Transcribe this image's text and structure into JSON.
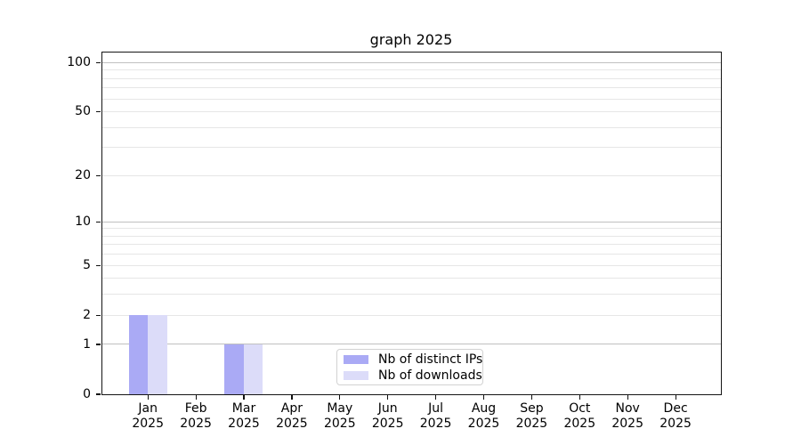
{
  "chart_data": {
    "type": "bar",
    "title": "graph 2025",
    "categories": [
      {
        "month": "Jan",
        "year": "2025"
      },
      {
        "month": "Feb",
        "year": "2025"
      },
      {
        "month": "Mar",
        "year": "2025"
      },
      {
        "month": "Apr",
        "year": "2025"
      },
      {
        "month": "May",
        "year": "2025"
      },
      {
        "month": "Jun",
        "year": "2025"
      },
      {
        "month": "Jul",
        "year": "2025"
      },
      {
        "month": "Aug",
        "year": "2025"
      },
      {
        "month": "Sep",
        "year": "2025"
      },
      {
        "month": "Oct",
        "year": "2025"
      },
      {
        "month": "Nov",
        "year": "2025"
      },
      {
        "month": "Dec",
        "year": "2025"
      }
    ],
    "series": [
      {
        "name": "Nb of distinct IPs",
        "color": "#aaaaf5",
        "values": [
          2,
          0,
          1,
          0,
          0,
          0,
          0,
          0,
          0,
          0,
          0,
          0
        ]
      },
      {
        "name": "Nb of downloads",
        "color": "#dcdcf9",
        "values": [
          2,
          0,
          1,
          0,
          0,
          0,
          0,
          0,
          0,
          0,
          0,
          0
        ]
      }
    ],
    "y_axis": {
      "scale": "log1p",
      "tick_labels": [
        100,
        50,
        20,
        10,
        5,
        2,
        1,
        0
      ],
      "major_gridlines": [
        1,
        10,
        100
      ],
      "minor_gridlines": [
        2,
        3,
        4,
        5,
        6,
        7,
        8,
        9,
        20,
        30,
        40,
        50,
        60,
        70,
        80,
        90
      ],
      "range": [
        0,
        119
      ]
    },
    "grid": {
      "major_color": "#c0c0c0",
      "minor_color": "#e6e6e6"
    },
    "legend": {
      "position": "lower center"
    }
  }
}
